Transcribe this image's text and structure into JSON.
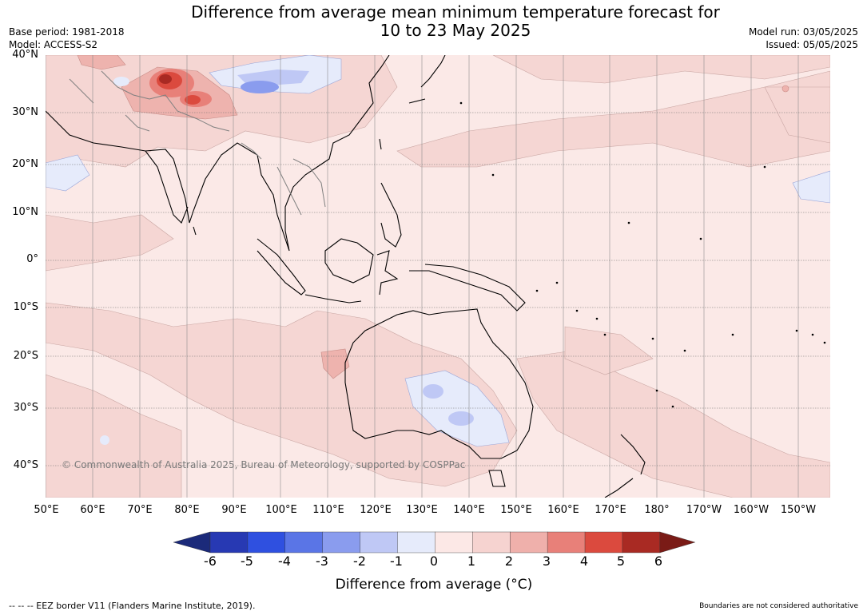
{
  "title": {
    "line1": "Difference from average mean minimum temperature forecast for",
    "line2": "10 to 23 May 2025"
  },
  "meta": {
    "base_period": "Base period: 1981-2018",
    "model": "Model: ACCESS-S2",
    "model_run": "Model run: 03/05/2025",
    "issued": "Issued: 05/05/2025"
  },
  "map": {
    "lat_labels": [
      "40°N",
      "30°N",
      "20°N",
      "10°N",
      "0°",
      "10°S",
      "20°S",
      "30°S",
      "40°S"
    ],
    "lon_labels": [
      "50°E",
      "60°E",
      "70°E",
      "80°E",
      "90°E",
      "100°E",
      "110°E",
      "120°E",
      "130°E",
      "140°E",
      "150°E",
      "160°E",
      "170°E",
      "180°",
      "170°W",
      "160°W",
      "150°W"
    ],
    "copyright": "© Commonwealth of Australia 2025, Bureau of Meteorology, supported by COSPPac"
  },
  "colorbar": {
    "ticks": [
      "-6",
      "-5",
      "-4",
      "-3",
      "-2",
      "-1",
      "0",
      "1",
      "2",
      "3",
      "4",
      "5",
      "6"
    ],
    "colors": [
      "#1b2a7a",
      "#2739b3",
      "#2f50e0",
      "#5a75e6",
      "#8a9cee",
      "#bfc8f5",
      "#e6ebfb",
      "#fce8e6",
      "#f6d3d0",
      "#efb0ab",
      "#e88079",
      "#db4a3e",
      "#a92a23",
      "#7a1b16"
    ],
    "title": "Difference from average (°C)"
  },
  "footer": {
    "eez": "--  --  -- EEZ border V11 (Flanders Marine Institute, 2019).",
    "disclaimer": "Boundaries are not considered authoritative"
  }
}
